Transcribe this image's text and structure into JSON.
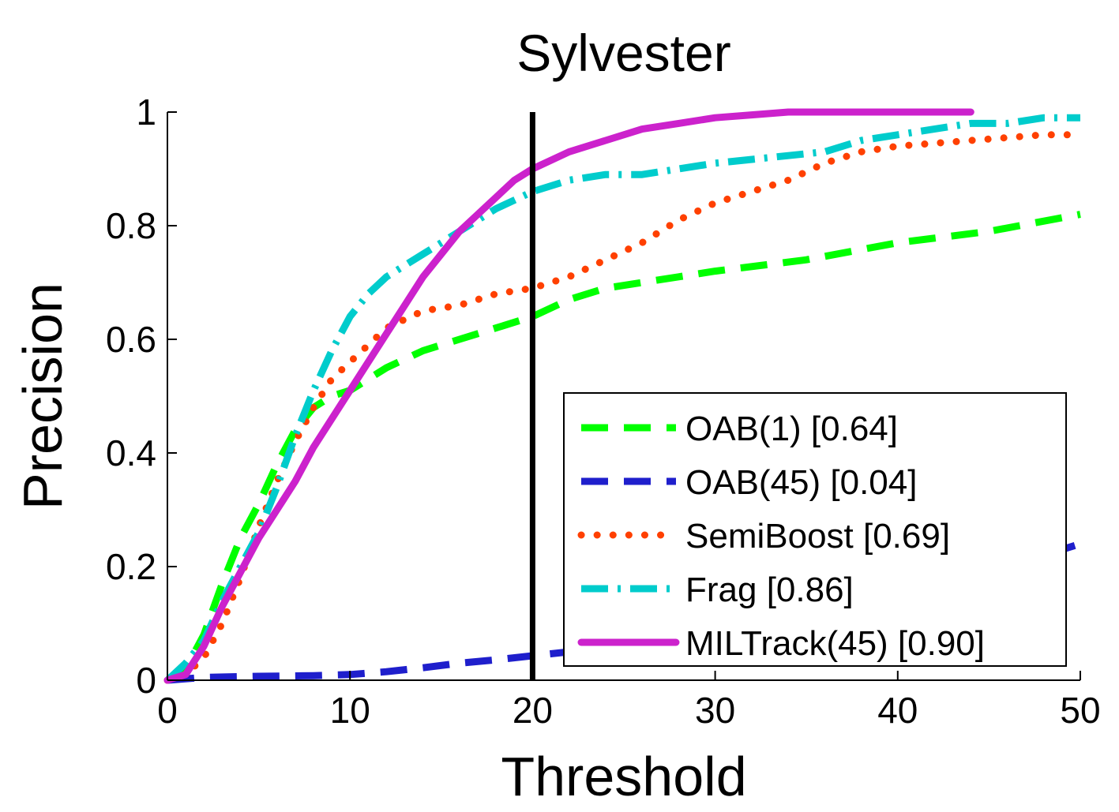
{
  "chart_data": {
    "type": "line",
    "title": "Sylvester",
    "xlabel": "Threshold",
    "ylabel": "Precision",
    "xlim": [
      0,
      50
    ],
    "ylim": [
      0,
      1
    ],
    "xticks": [
      "0",
      "10",
      "20",
      "30",
      "40",
      "50"
    ],
    "yticks": [
      "0",
      "0.2",
      "0.4",
      "0.6",
      "0.8",
      "1"
    ],
    "grid": false,
    "legend_position": "bottom-right",
    "reference_line_x": 20,
    "series": [
      {
        "name": "OAB(1) [0.64]",
        "color": "#00ff00",
        "style": "dashed",
        "x": [
          0,
          1,
          2,
          3,
          4,
          5,
          6,
          7,
          8,
          9,
          10,
          11,
          12,
          14,
          16,
          18,
          20,
          22,
          24,
          26,
          28,
          30,
          35,
          40,
          45,
          50
        ],
        "y": [
          0,
          0.02,
          0.08,
          0.17,
          0.25,
          0.31,
          0.38,
          0.44,
          0.48,
          0.5,
          0.51,
          0.53,
          0.55,
          0.58,
          0.6,
          0.62,
          0.64,
          0.67,
          0.69,
          0.7,
          0.71,
          0.72,
          0.74,
          0.77,
          0.79,
          0.82
        ]
      },
      {
        "name": "OAB(45) [0.04]",
        "color": "#1f1fcc",
        "style": "dashed",
        "x": [
          0,
          2,
          5,
          8,
          10,
          12,
          14,
          16,
          18,
          20,
          22,
          24,
          30,
          35,
          40,
          45,
          50
        ],
        "y": [
          0,
          0.005,
          0.007,
          0.008,
          0.01,
          0.015,
          0.022,
          0.03,
          0.036,
          0.043,
          0.05,
          0.06,
          0.08,
          0.1,
          0.13,
          0.19,
          0.24
        ]
      },
      {
        "name": "SemiBoost [0.69]",
        "color": "#ff4000",
        "style": "dotted",
        "x": [
          0,
          1,
          2,
          3,
          4,
          5,
          6,
          7,
          8,
          9,
          10,
          11,
          12,
          14,
          16,
          18,
          20,
          22,
          24,
          26,
          28,
          30,
          32,
          34,
          36,
          38,
          40,
          44,
          48,
          50
        ],
        "y": [
          0,
          0.01,
          0.04,
          0.1,
          0.18,
          0.27,
          0.35,
          0.42,
          0.48,
          0.53,
          0.56,
          0.59,
          0.62,
          0.65,
          0.66,
          0.68,
          0.69,
          0.71,
          0.74,
          0.77,
          0.81,
          0.84,
          0.86,
          0.88,
          0.91,
          0.93,
          0.94,
          0.95,
          0.96,
          0.96
        ]
      },
      {
        "name": "Frag [0.86]",
        "color": "#00cccc",
        "style": "dash-dot",
        "x": [
          0,
          1,
          2,
          3,
          4,
          5,
          6,
          7,
          8,
          9,
          10,
          11,
          12,
          14,
          16,
          18,
          20,
          22,
          24,
          26,
          28,
          30,
          33,
          36,
          38,
          40,
          42,
          44,
          46,
          48,
          50
        ],
        "y": [
          0,
          0.03,
          0.07,
          0.14,
          0.2,
          0.26,
          0.34,
          0.43,
          0.51,
          0.58,
          0.64,
          0.68,
          0.71,
          0.75,
          0.79,
          0.83,
          0.86,
          0.88,
          0.89,
          0.89,
          0.9,
          0.91,
          0.92,
          0.93,
          0.95,
          0.96,
          0.97,
          0.98,
          0.98,
          0.99,
          0.99
        ]
      },
      {
        "name": "MILTrack(45) [0.90]",
        "color": "#cc22cc",
        "style": "solid",
        "x": [
          0,
          1,
          2,
          3,
          4,
          5,
          6,
          7,
          8,
          9,
          10,
          11,
          12,
          13,
          14,
          15,
          16,
          17,
          18,
          19,
          20,
          22,
          24,
          26,
          28,
          30,
          32,
          34,
          36,
          40,
          44
        ],
        "y": [
          0,
          0.01,
          0.06,
          0.13,
          0.19,
          0.25,
          0.3,
          0.35,
          0.41,
          0.46,
          0.51,
          0.56,
          0.61,
          0.66,
          0.71,
          0.75,
          0.79,
          0.82,
          0.85,
          0.88,
          0.9,
          0.93,
          0.95,
          0.97,
          0.98,
          0.99,
          0.995,
          1.0,
          1.0,
          1.0,
          1.0
        ]
      }
    ]
  }
}
